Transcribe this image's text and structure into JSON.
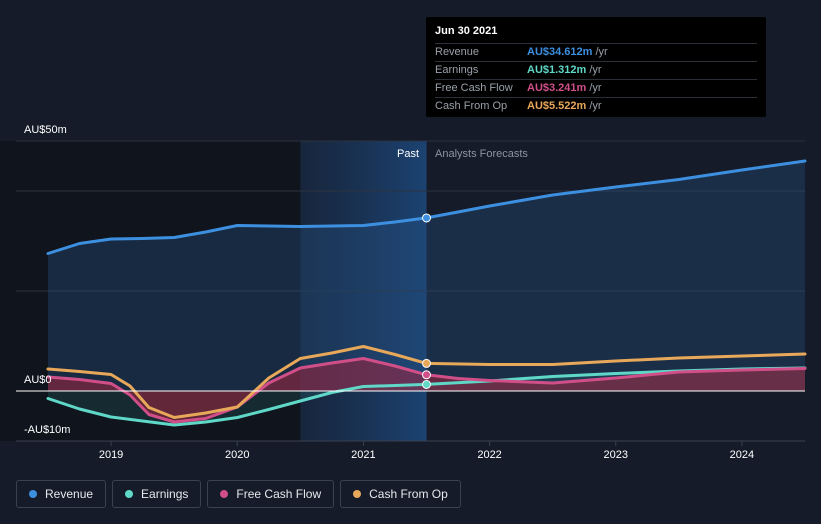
{
  "tooltip": {
    "date": "Jun 30 2021",
    "rows": [
      {
        "name": "Revenue",
        "value": "AU$34.612m",
        "unit": "/yr",
        "color": "#3d8fe0"
      },
      {
        "name": "Earnings",
        "value": "AU$1.312m",
        "unit": "/yr",
        "color": "#5fd8c8"
      },
      {
        "name": "Free Cash Flow",
        "value": "AU$3.241m",
        "unit": "/yr",
        "color": "#d04f89"
      },
      {
        "name": "Cash From Op",
        "value": "AU$5.522m",
        "unit": "/yr",
        "color": "#e8a85a"
      }
    ]
  },
  "legend": [
    {
      "label": "Revenue",
      "color": "#3d8fe0"
    },
    {
      "label": "Earnings",
      "color": "#5fd8c8"
    },
    {
      "label": "Free Cash Flow",
      "color": "#d04f89"
    },
    {
      "label": "Cash From Op",
      "color": "#e8a85a"
    }
  ],
  "chart_data": {
    "type": "line",
    "y_tick_labels": [
      "AU$50m",
      "AU$0",
      "-AU$10m"
    ],
    "ylim": [
      -10,
      50
    ],
    "x_tick_labels": [
      "2019",
      "2020",
      "2021",
      "2022",
      "2023",
      "2024"
    ],
    "x_ticks": [
      2019.0,
      2020.0,
      2021.0,
      2022.0,
      2023.0,
      2024.0
    ],
    "xlim": [
      2018.5,
      2024.5
    ],
    "past_label": "Past",
    "forecast_label": "Analysts Forecasts",
    "highlight_x": 2021.5,
    "highlight_range": [
      2020.5,
      2021.5
    ],
    "grid": true,
    "series": [
      {
        "name": "Revenue",
        "color": "#3d8fe0",
        "fill": true,
        "points": [
          [
            2018.5,
            27.5
          ],
          [
            2018.75,
            29.5
          ],
          [
            2019.0,
            30.4
          ],
          [
            2019.25,
            30.5
          ],
          [
            2019.5,
            30.7
          ],
          [
            2019.75,
            31.8
          ],
          [
            2020.0,
            33.1
          ],
          [
            2020.25,
            33.0
          ],
          [
            2020.5,
            32.9
          ],
          [
            2020.75,
            33.0
          ],
          [
            2021.0,
            33.1
          ],
          [
            2021.25,
            33.8
          ],
          [
            2021.5,
            34.612
          ],
          [
            2021.75,
            35.8
          ],
          [
            2022.0,
            37.0
          ],
          [
            2022.5,
            39.2
          ],
          [
            2023.0,
            40.8
          ],
          [
            2023.5,
            42.3
          ],
          [
            2024.0,
            44.2
          ],
          [
            2024.5,
            46.0
          ]
        ]
      },
      {
        "name": "Earnings",
        "color": "#5fd8c8",
        "fill": true,
        "points": [
          [
            2018.5,
            -1.5
          ],
          [
            2018.75,
            -3.6
          ],
          [
            2019.0,
            -5.2
          ],
          [
            2019.25,
            -6.0
          ],
          [
            2019.5,
            -6.8
          ],
          [
            2019.75,
            -6.2
          ],
          [
            2020.0,
            -5.3
          ],
          [
            2020.25,
            -3.7
          ],
          [
            2020.5,
            -2.0
          ],
          [
            2020.75,
            -0.3
          ],
          [
            2021.0,
            0.9
          ],
          [
            2021.25,
            1.1
          ],
          [
            2021.5,
            1.312
          ],
          [
            2022.0,
            2.0
          ],
          [
            2022.5,
            2.9
          ],
          [
            2023.0,
            3.5
          ],
          [
            2023.5,
            4.0
          ],
          [
            2024.0,
            4.4
          ],
          [
            2024.5,
            4.6
          ]
        ]
      },
      {
        "name": "Free Cash Flow",
        "color": "#d04f89",
        "fill": true,
        "points": [
          [
            2018.5,
            2.8
          ],
          [
            2018.75,
            2.3
          ],
          [
            2019.0,
            1.5
          ],
          [
            2019.15,
            -0.8
          ],
          [
            2019.3,
            -4.7
          ],
          [
            2019.5,
            -6.2
          ],
          [
            2019.75,
            -5.5
          ],
          [
            2020.0,
            -3.2
          ],
          [
            2020.25,
            1.6
          ],
          [
            2020.5,
            4.6
          ],
          [
            2020.75,
            5.6
          ],
          [
            2021.0,
            6.5
          ],
          [
            2021.25,
            5.0
          ],
          [
            2021.5,
            3.241
          ],
          [
            2021.75,
            2.5
          ],
          [
            2022.0,
            2.1
          ],
          [
            2022.5,
            1.6
          ],
          [
            2023.0,
            2.6
          ],
          [
            2023.5,
            3.8
          ],
          [
            2024.0,
            4.2
          ],
          [
            2024.5,
            4.5
          ]
        ]
      },
      {
        "name": "Cash From Op",
        "color": "#e8a85a",
        "fill": false,
        "points": [
          [
            2018.5,
            4.4
          ],
          [
            2018.75,
            3.9
          ],
          [
            2019.0,
            3.3
          ],
          [
            2019.15,
            1.0
          ],
          [
            2019.3,
            -3.3
          ],
          [
            2019.5,
            -5.3
          ],
          [
            2019.75,
            -4.4
          ],
          [
            2020.0,
            -3.2
          ],
          [
            2020.25,
            2.6
          ],
          [
            2020.5,
            6.5
          ],
          [
            2020.75,
            7.6
          ],
          [
            2021.0,
            8.9
          ],
          [
            2021.25,
            7.3
          ],
          [
            2021.5,
            5.522
          ],
          [
            2022.0,
            5.3
          ],
          [
            2022.5,
            5.3
          ],
          [
            2023.0,
            6.0
          ],
          [
            2023.5,
            6.6
          ],
          [
            2024.0,
            7.0
          ],
          [
            2024.5,
            7.4
          ]
        ]
      }
    ]
  }
}
